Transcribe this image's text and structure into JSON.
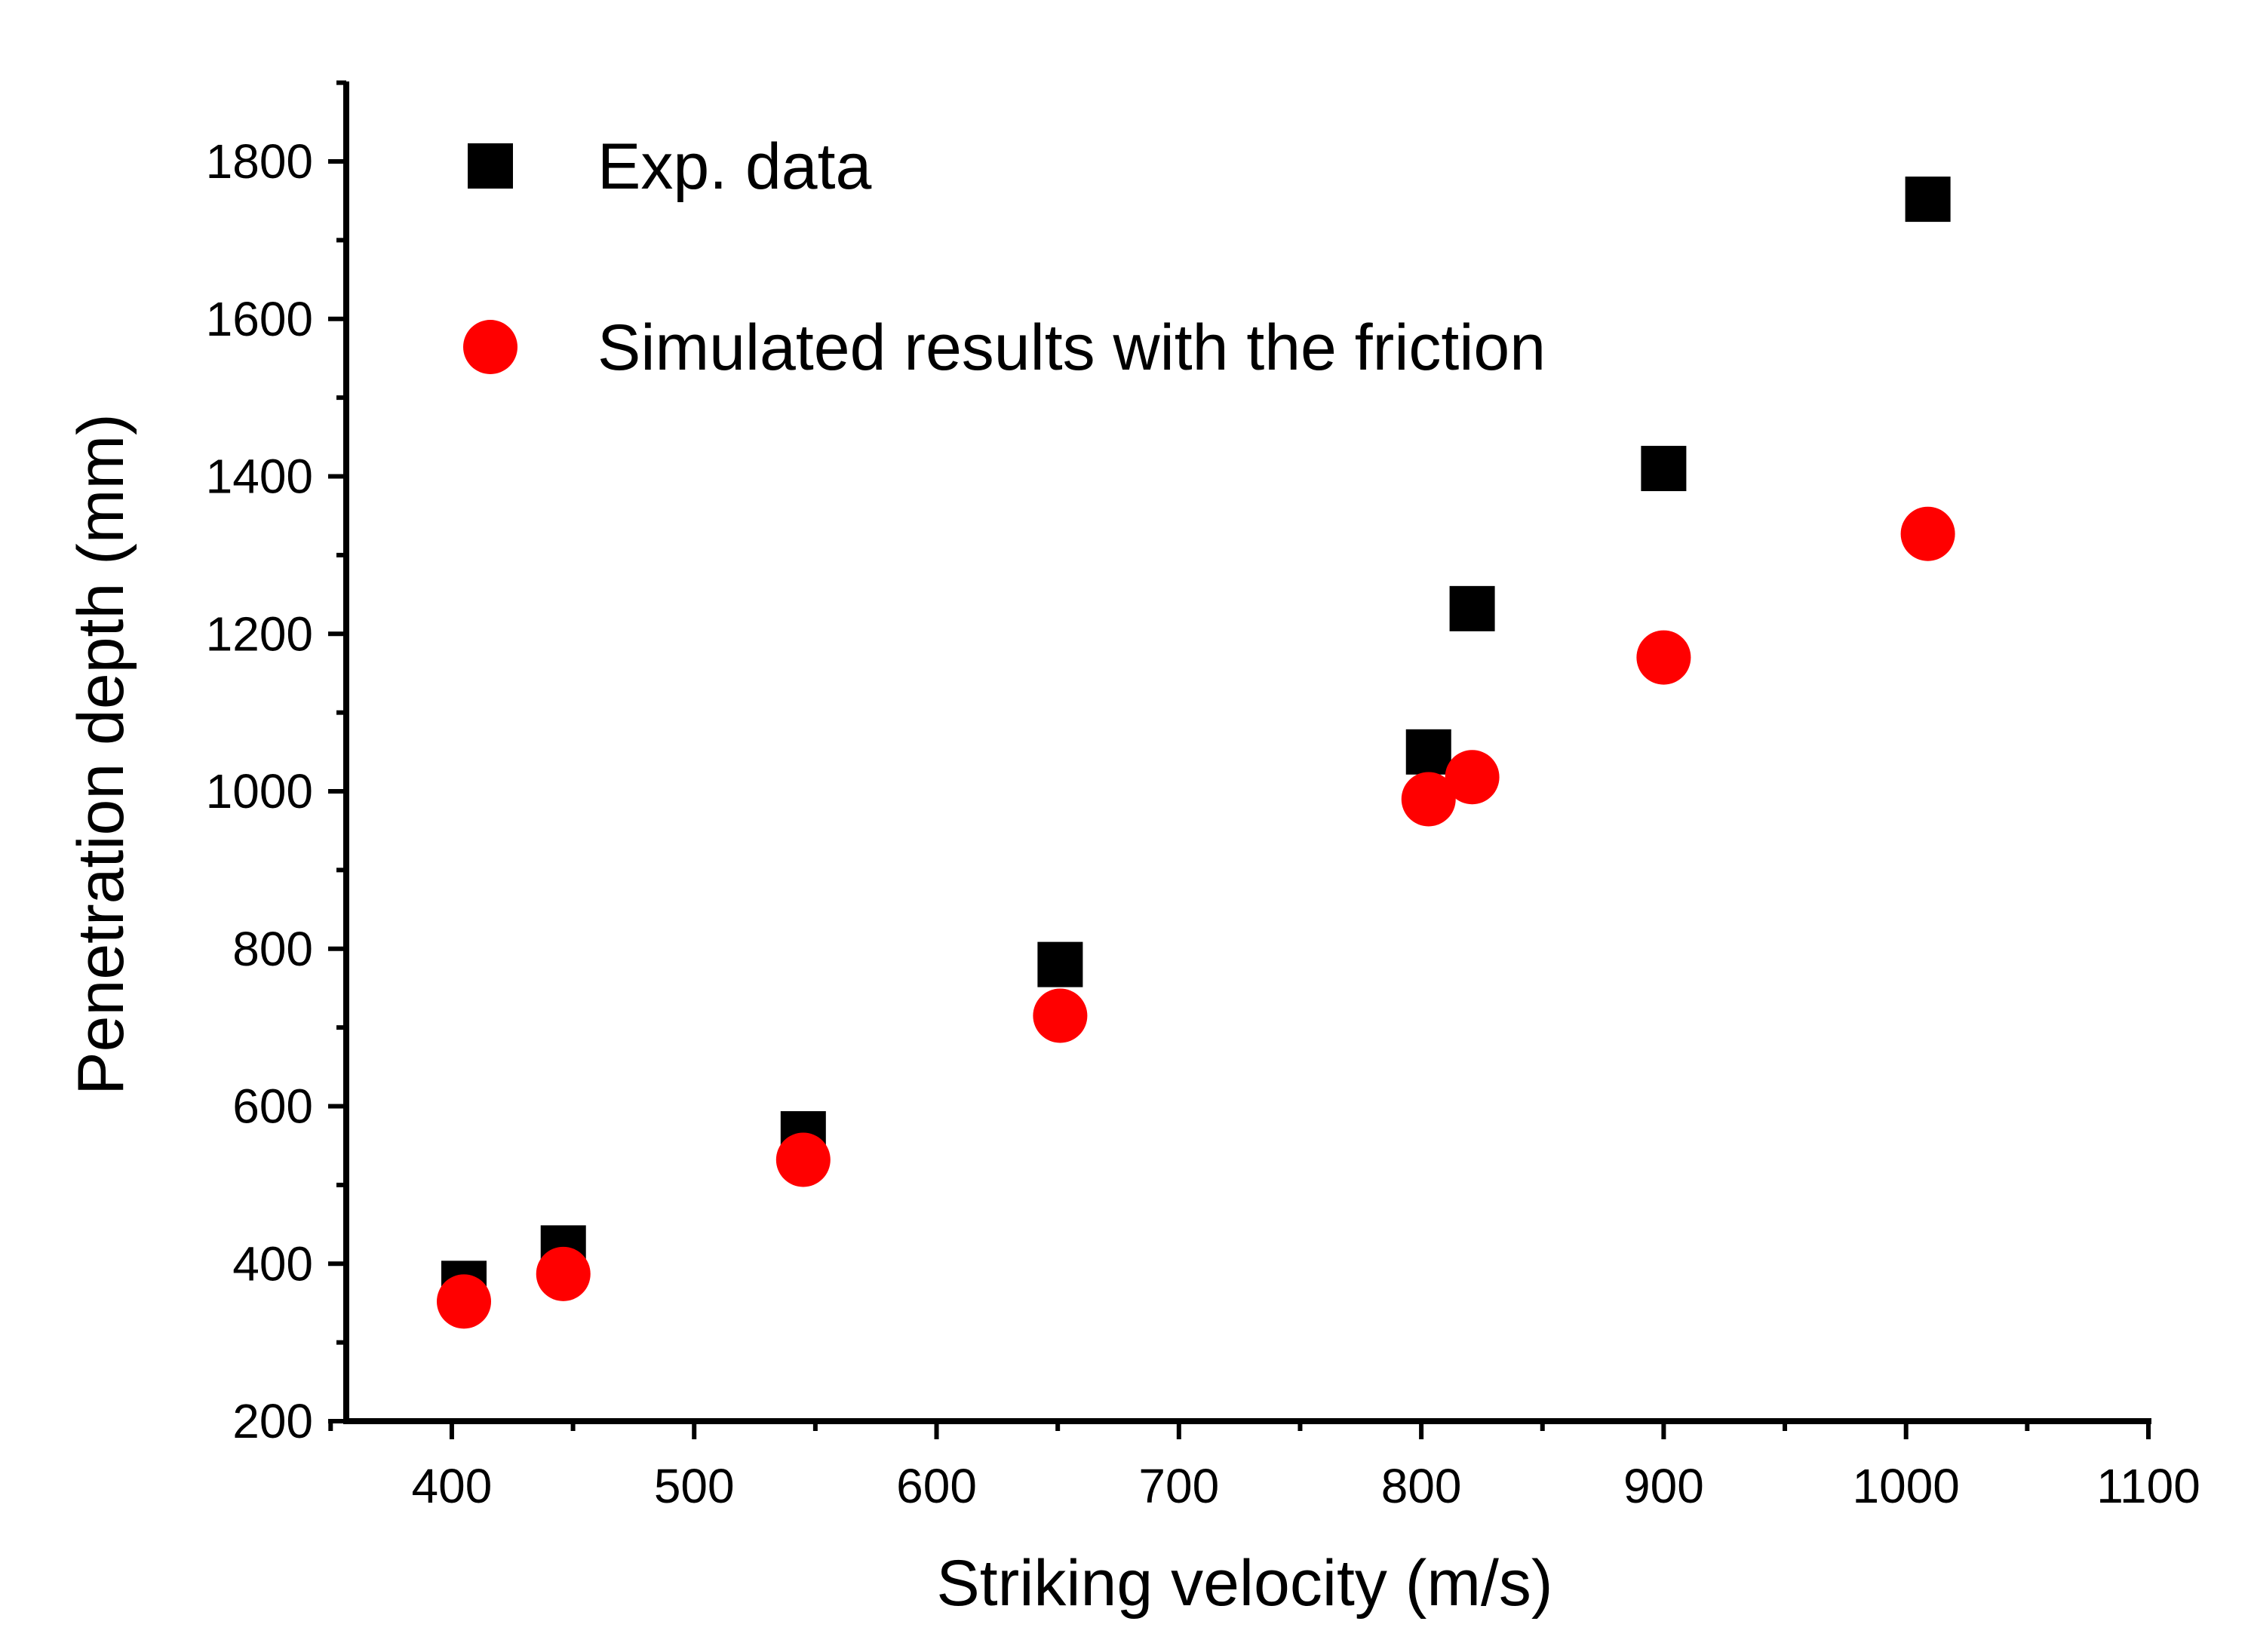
{
  "chart_data": {
    "type": "scatter",
    "title": "",
    "xlabel": "Striking velocity (m/s)",
    "ylabel": "Penetration depth (mm)",
    "xlim": [
      350,
      1100
    ],
    "ylim": [
      200,
      1900
    ],
    "xticks": [
      400,
      500,
      600,
      700,
      800,
      900,
      1000,
      1100
    ],
    "yticks": [
      200,
      400,
      600,
      800,
      1000,
      1200,
      1400,
      1600,
      1800
    ],
    "grid": false,
    "legend_position": "top-left",
    "series": [
      {
        "name": "Exp. data",
        "marker": "square",
        "color": "#000000",
        "points": [
          {
            "x": 405,
            "y": 375
          },
          {
            "x": 446,
            "y": 420
          },
          {
            "x": 545,
            "y": 565
          },
          {
            "x": 651,
            "y": 780
          },
          {
            "x": 803,
            "y": 1050
          },
          {
            "x": 821,
            "y": 1232
          },
          {
            "x": 900,
            "y": 1410
          },
          {
            "x": 1009,
            "y": 1752
          }
        ]
      },
      {
        "name": "Simulated results with the friction",
        "marker": "circle",
        "color": "#ff0000",
        "points": [
          {
            "x": 405,
            "y": 352
          },
          {
            "x": 446,
            "y": 387
          },
          {
            "x": 545,
            "y": 532
          },
          {
            "x": 651,
            "y": 715
          },
          {
            "x": 803,
            "y": 990
          },
          {
            "x": 821,
            "y": 1018
          },
          {
            "x": 900,
            "y": 1170
          },
          {
            "x": 1009,
            "y": 1327
          }
        ]
      }
    ]
  }
}
